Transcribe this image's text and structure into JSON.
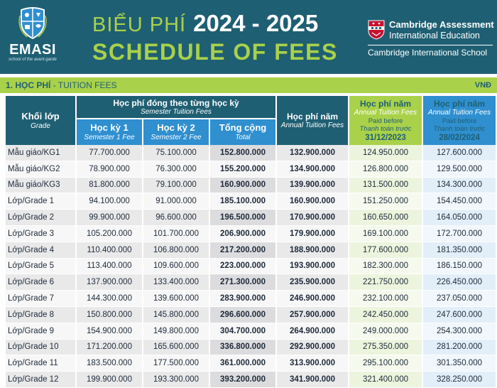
{
  "logo": {
    "word": "EMASI",
    "tagline": "school of the avant-garde",
    "icon": "shield-logo-icon"
  },
  "title": {
    "vn": "BIỂU PHÍ",
    "year": "2024 - 2025",
    "en": "SCHEDULE OF FEES"
  },
  "cambridge": {
    "line1": "Cambridge Assessment",
    "line2": "International Education",
    "school": "Cambridge International School",
    "icon": "cambridge-shield-icon"
  },
  "section": {
    "title_bold": "1. HỌC PHÍ",
    "title_rest": " - TUITION FEES",
    "currency": "VNĐ"
  },
  "headers": {
    "grade_vn": "Khối lớp",
    "grade_en": "Grade",
    "semester_vn": "Học phí đóng theo từng học kỳ",
    "semester_en": "Semester Tuition Fees",
    "sem1_vn": "Học kỳ 1",
    "sem1_en": "Semester 1 Fee",
    "sem2_vn": "Học kỳ 2",
    "sem2_en": "Semester 2 Fee",
    "total_vn": "Tổng cộng",
    "total_en": "Total",
    "annual_vn": "Học phí năm",
    "annual_en": "Annual Tuition Fees",
    "early1_vn": "Học phí năm",
    "early1_en": "Annual Tuition Fees",
    "early1_paid": "Paid before",
    "early1_paid_vn": "Thanh toán trước",
    "early1_date": "31/12/2023",
    "early2_vn": "Học phí năm",
    "early2_en": "Annual Tuition Fees",
    "early2_paid": "Paid before",
    "early2_paid_vn": "Thanh toán trước",
    "early2_date": "28/02/2024"
  },
  "rows": [
    [
      "Mẫu giáo/KG1",
      "77.700.000",
      "75.100.000",
      "152.800.000",
      "132.900.000",
      "124.950.000",
      "127.600.000"
    ],
    [
      "Mẫu giáo/KG2",
      "78.900.000",
      "76.300.000",
      "155.200.000",
      "134.900.000",
      "126.800.000",
      "129.500.000"
    ],
    [
      "Mẫu giáo/KG3",
      "81.800.000",
      "79.100.000",
      "160.900.000",
      "139.900.000",
      "131.500.000",
      "134.300.000"
    ],
    [
      "Lớp/Grade 1",
      "94.100.000",
      "91.000.000",
      "185.100.000",
      "160.900.000",
      "151.250.000",
      "154.450.000"
    ],
    [
      "Lớp/Grade 2",
      "99.900.000",
      "96.600.000",
      "196.500.000",
      "170.900.000",
      "160.650.000",
      "164.050.000"
    ],
    [
      "Lớp/Grade 3",
      "105.200.000",
      "101.700.000",
      "206.900.000",
      "179.900.000",
      "169.100.000",
      "172.700.000"
    ],
    [
      "Lớp/Grade 4",
      "110.400.000",
      "106.800.000",
      "217.200.000",
      "188.900.000",
      "177.600.000",
      "181.350.000"
    ],
    [
      "Lớp/Grade 5",
      "113.400.000",
      "109.600.000",
      "223.000.000",
      "193.900.000",
      "182.300.000",
      "186.150.000"
    ],
    [
      "Lớp/Grade 6",
      "137.900.000",
      "133.400.000",
      "271.300.000",
      "235.900.000",
      "221.750.000",
      "226.450.000"
    ],
    [
      "Lớp/Grade 7",
      "144.300.000",
      "139.600.000",
      "283.900.000",
      "246.900.000",
      "232.100.000",
      "237.050.000"
    ],
    [
      "Lớp/Grade 8",
      "150.800.000",
      "145.800.000",
      "296.600.000",
      "257.900.000",
      "242.450.000",
      "247.600.000"
    ],
    [
      "Lớp/Grade 9",
      "154.900.000",
      "149.800.000",
      "304.700.000",
      "264.900.000",
      "249.000.000",
      "254.300.000"
    ],
    [
      "Lớp/Grade 10",
      "171.200.000",
      "165.600.000",
      "336.800.000",
      "292.900.000",
      "275.350.000",
      "281.200.000"
    ],
    [
      "Lớp/Grade 11",
      "183.500.000",
      "177.500.000",
      "361.000.000",
      "313.900.000",
      "295.100.000",
      "301.350.000"
    ],
    [
      "Lớp/Grade 12",
      "199.900.000",
      "193.300.000",
      "393.200.000",
      "341.900.000",
      "321.400.000",
      "328.250.000"
    ]
  ]
}
